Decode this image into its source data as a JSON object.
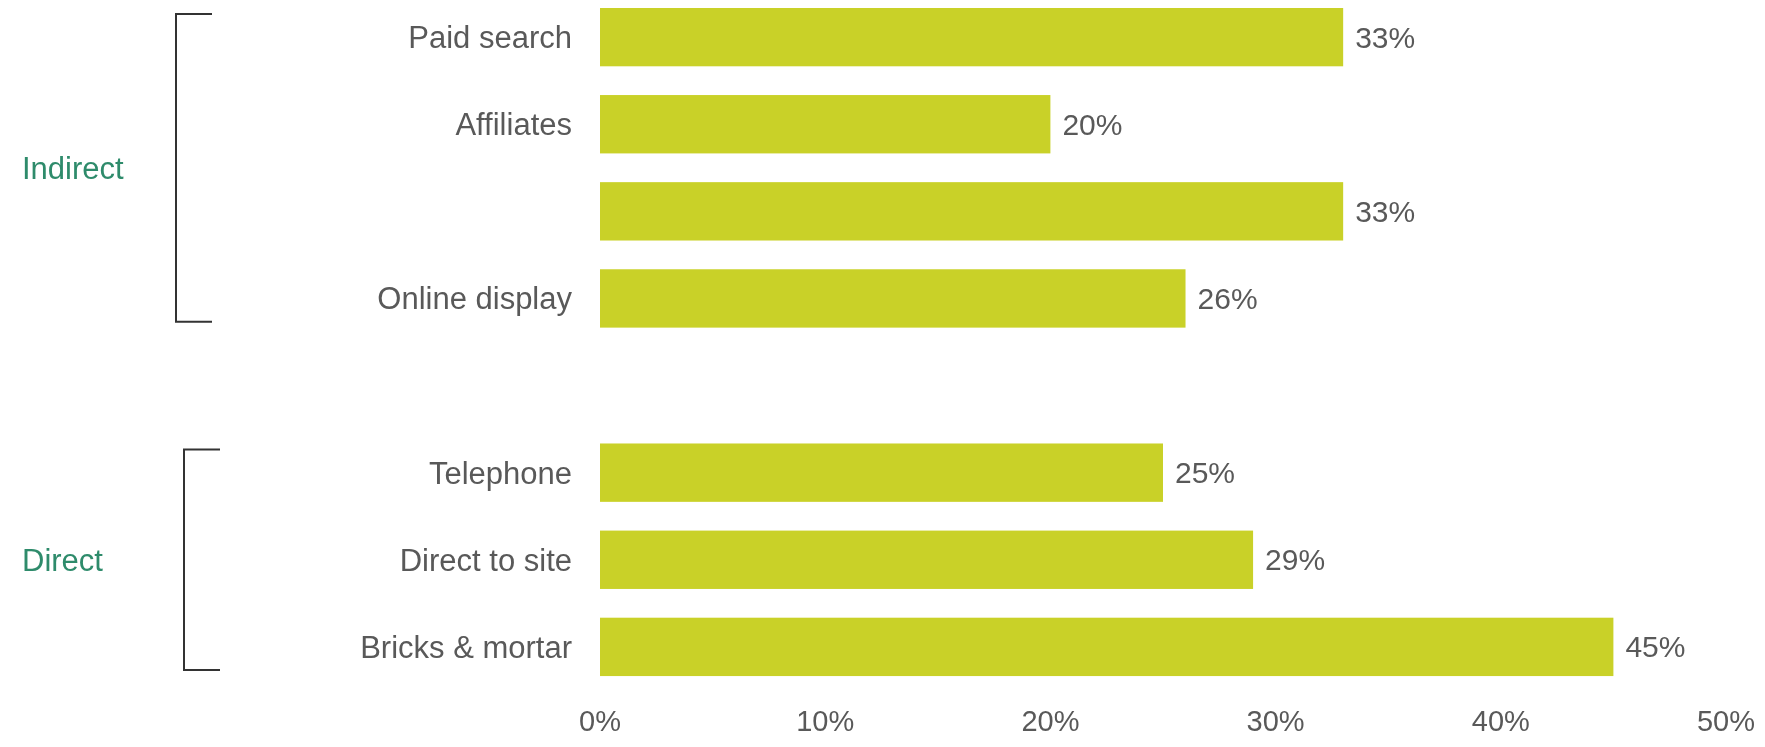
{
  "chart_data": {
    "type": "bar",
    "orientation": "horizontal",
    "categories": [
      "Paid search",
      "Affiliates",
      null,
      "Online display",
      null,
      "Telephone",
      "Direct to site",
      "Bricks & mortar"
    ],
    "values": [
      33,
      20,
      33,
      26,
      null,
      25,
      29,
      45
    ],
    "value_labels": [
      "33%",
      "20%",
      "33%",
      "26%",
      null,
      "25%",
      "29%",
      "45%"
    ],
    "color": "#c9d128",
    "xlim": [
      0,
      50
    ],
    "xticks": [
      {
        "value": 0,
        "label": "0%"
      },
      {
        "value": 10,
        "label": "10%"
      },
      {
        "value": 20,
        "label": "20%"
      },
      {
        "value": 30,
        "label": "30%"
      },
      {
        "value": 40,
        "label": "40%"
      },
      {
        "value": 50,
        "label": "50%"
      }
    ],
    "annotations": [
      "Indirect",
      "Direct"
    ]
  }
}
